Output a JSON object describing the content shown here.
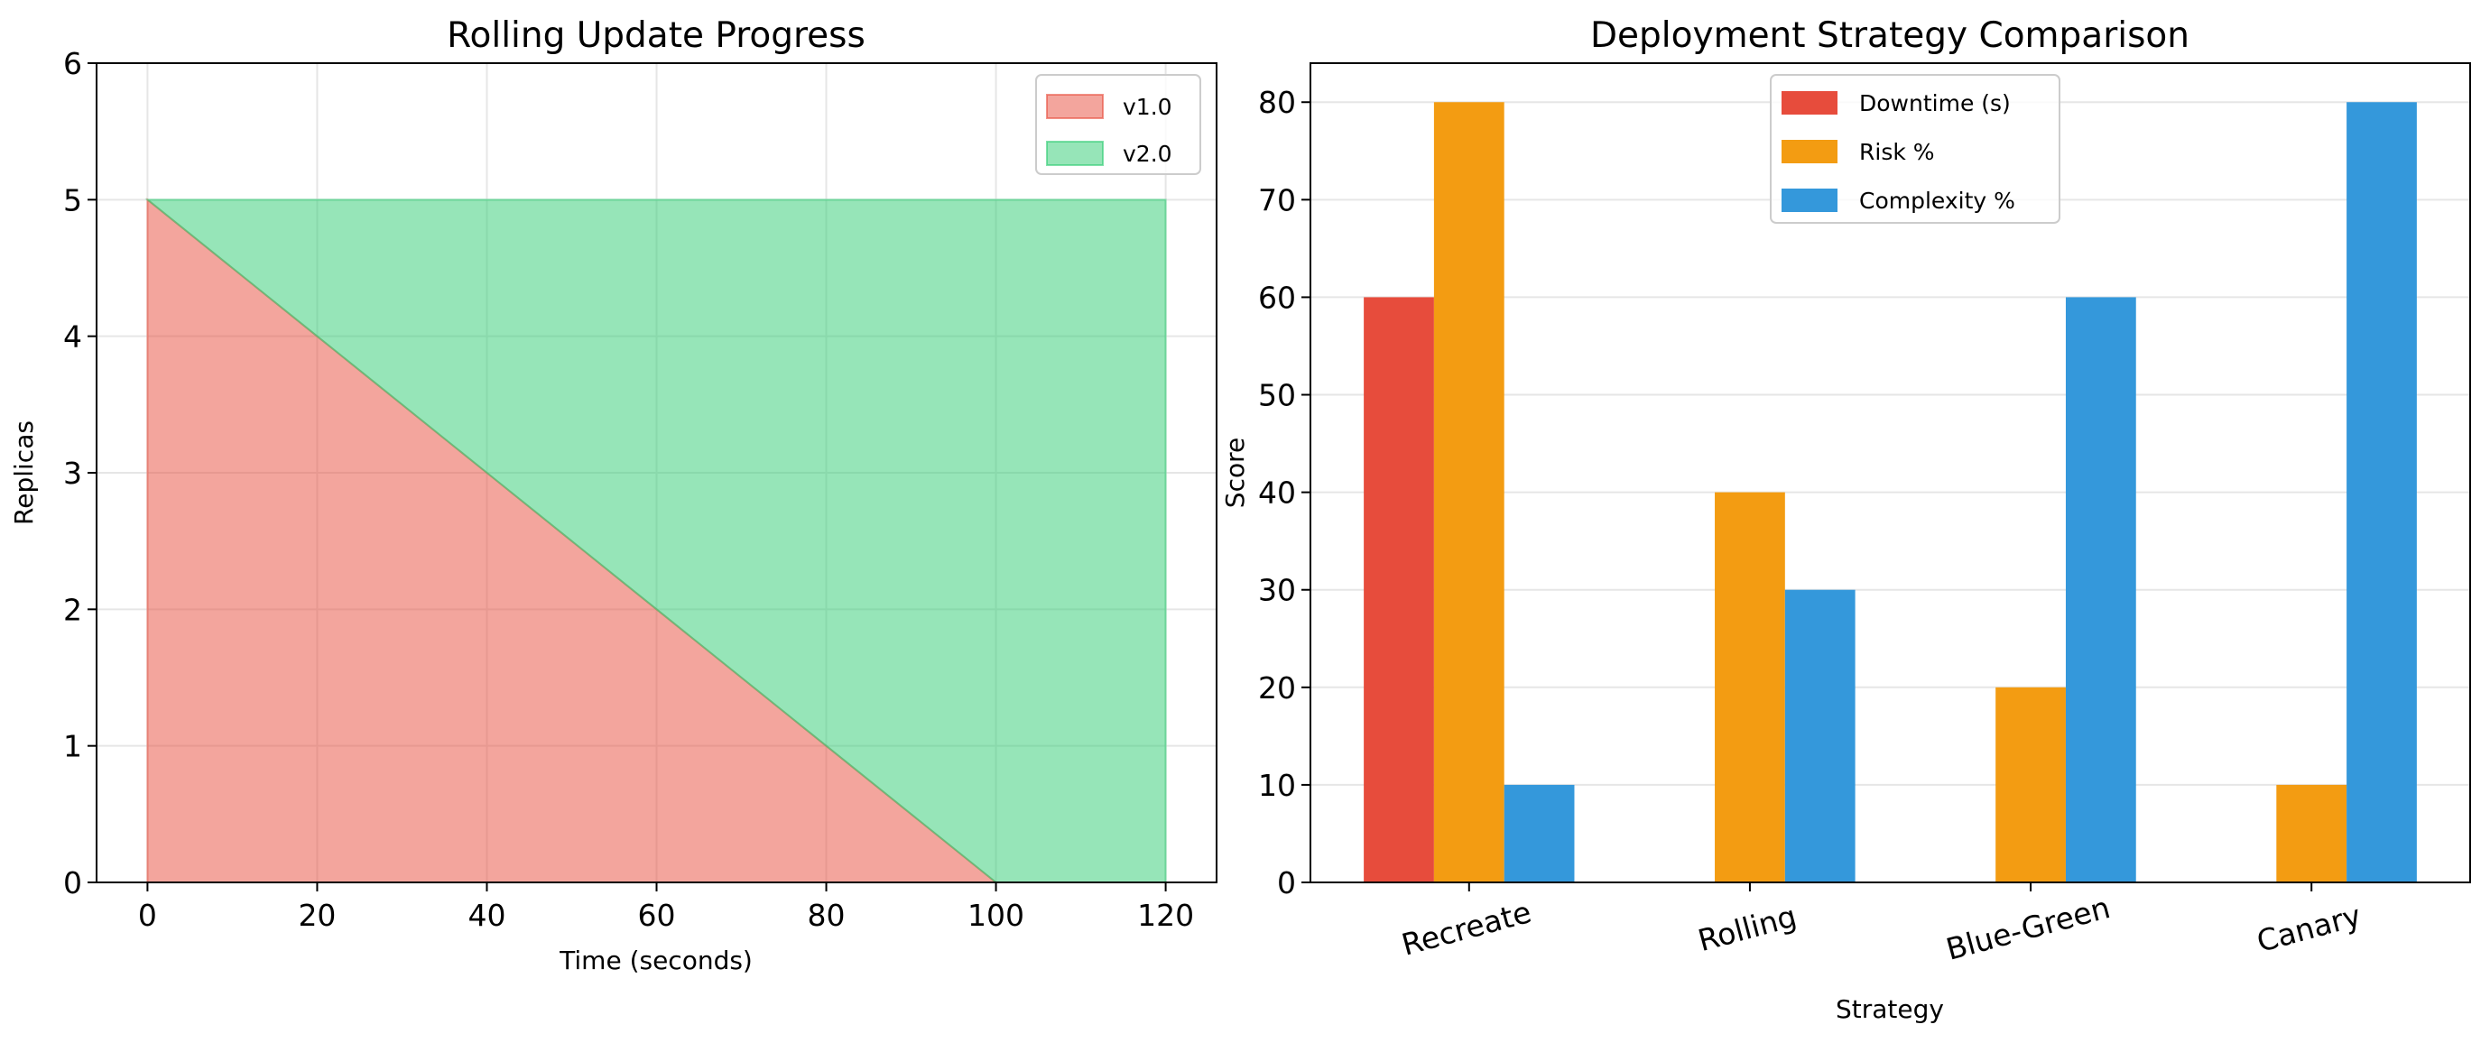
{
  "chart_data": [
    {
      "type": "area",
      "title": "Rolling Update Progress",
      "xlabel": "Time (seconds)",
      "ylabel": "Replicas",
      "xlim": [
        -6,
        126
      ],
      "ylim": [
        0,
        6
      ],
      "xticks": [
        0,
        20,
        40,
        60,
        80,
        100,
        120
      ],
      "yticks": [
        0,
        1,
        2,
        3,
        4,
        5,
        6
      ],
      "grid": true,
      "stacked": true,
      "legend_position": "top-right",
      "x": [
        0,
        20,
        40,
        60,
        80,
        100,
        120
      ],
      "series": [
        {
          "name": "v1.0",
          "color": "#e74c3c",
          "values": [
            5,
            4,
            3,
            2,
            1,
            0,
            0
          ]
        },
        {
          "name": "v2.0",
          "color": "#2ecc71",
          "values": [
            0,
            1,
            2,
            3,
            4,
            5,
            5
          ]
        }
      ]
    },
    {
      "type": "bar",
      "title": "Deployment Strategy Comparison",
      "xlabel": "Strategy",
      "ylabel": "Score",
      "ylim": [
        0,
        84
      ],
      "yticks": [
        0,
        10,
        20,
        30,
        40,
        50,
        60,
        70,
        80
      ],
      "grid": true,
      "legend_position": "top-center",
      "categories": [
        "Recreate",
        "Rolling",
        "Blue-Green",
        "Canary"
      ],
      "series": [
        {
          "name": "Downtime (s)",
          "color": "#e74c3c",
          "values": [
            60,
            0,
            0,
            0
          ]
        },
        {
          "name": "Risk %",
          "color": "#f39c12",
          "values": [
            80,
            40,
            20,
            10
          ]
        },
        {
          "name": "Complexity %",
          "color": "#3498db",
          "values": [
            10,
            30,
            60,
            80
          ]
        }
      ]
    }
  ]
}
